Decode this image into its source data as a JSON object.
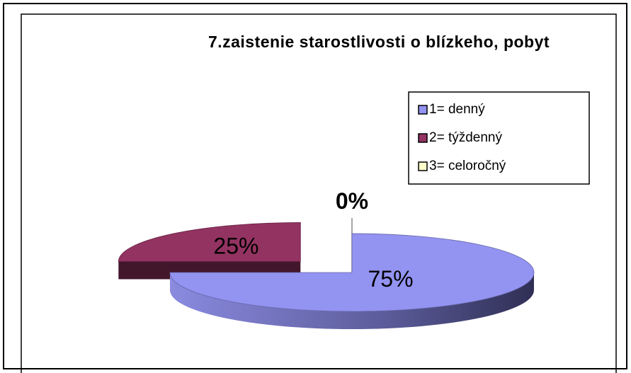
{
  "chart_data": {
    "type": "pie",
    "title": "7.zaistenie starostlivosti o blízkeho, pobyt",
    "categories": [
      "1= denný",
      "2= týždenný",
      "3= celoročný"
    ],
    "values": [
      75,
      25,
      0
    ],
    "value_labels": [
      "75%",
      "25%",
      "0%"
    ],
    "colors": [
      "#9393f2",
      "#933361",
      "#ffffcc"
    ],
    "legend": "upper right"
  }
}
